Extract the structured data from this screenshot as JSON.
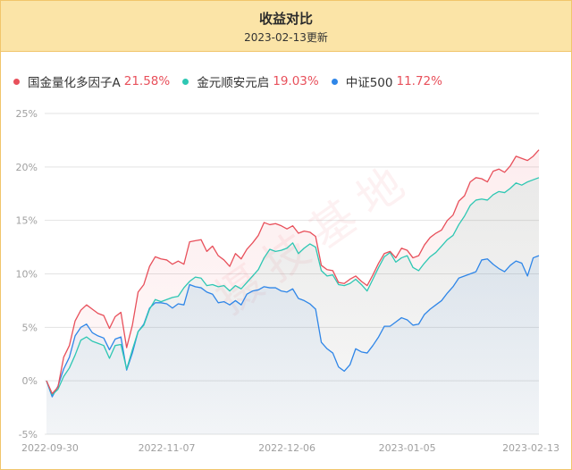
{
  "header": {
    "title": "收益对比",
    "subtitle": "2023-02-13更新"
  },
  "colors": {
    "header_bg": "#fbe4a7",
    "border": "#f1c56b",
    "return_value": "#e8505b"
  },
  "chart_data": {
    "type": "line",
    "ylim": [
      -5,
      25
    ],
    "y_ticks": [
      "-5%",
      "0%",
      "5%",
      "10%",
      "15%",
      "20%",
      "25%"
    ],
    "y_tick_values": [
      -5,
      0,
      5,
      10,
      15,
      20,
      25
    ],
    "x_tick_labels": [
      "2022-09-30",
      "2022-11-07",
      "2022-12-06",
      "2023-01-05",
      "2023-02-13"
    ],
    "x_tick_positions": [
      0,
      21,
      42,
      63,
      86
    ],
    "grid": true,
    "legend_placement": "top-left",
    "watermark": "摄技基地",
    "series": [
      {
        "name": "国金量化多因子A",
        "value_label": "21.58%",
        "color": "#e8505b",
        "values": [
          0,
          -1.2,
          -0.6,
          2.2,
          3.3,
          5.6,
          6.6,
          7.1,
          6.7,
          6.3,
          6.1,
          4.9,
          6.0,
          6.4,
          3.1,
          5.2,
          8.3,
          9.0,
          10.7,
          11.6,
          11.4,
          11.3,
          10.9,
          11.2,
          10.9,
          13.0,
          13.1,
          13.2,
          12.1,
          12.6,
          11.7,
          11.3,
          10.7,
          11.9,
          11.4,
          12.3,
          12.9,
          13.6,
          14.8,
          14.6,
          14.7,
          14.5,
          14.2,
          14.5,
          13.8,
          14.0,
          13.9,
          13.5,
          10.8,
          10.4,
          10.3,
          9.2,
          9.1,
          9.5,
          9.8,
          9.3,
          8.9,
          9.9,
          11.0,
          11.9,
          12.1,
          11.5,
          12.4,
          12.2,
          11.5,
          11.7,
          12.7,
          13.4,
          13.8,
          14.1,
          15.0,
          15.5,
          16.8,
          17.3,
          18.6,
          19.0,
          18.9,
          18.6,
          19.6,
          19.8,
          19.5,
          20.1,
          21.0,
          20.8,
          20.6,
          21.0,
          21.6
        ]
      },
      {
        "name": "金元顺安元启",
        "value_label": "19.03%",
        "color": "#2ec7b3",
        "values": [
          0,
          -1.3,
          -0.8,
          0.4,
          1.2,
          2.4,
          3.8,
          4.1,
          3.7,
          3.5,
          3.3,
          2.1,
          3.3,
          3.4,
          1.1,
          2.9,
          4.6,
          5.2,
          6.7,
          7.6,
          7.4,
          7.6,
          7.8,
          7.9,
          8.7,
          9.3,
          9.7,
          9.6,
          8.9,
          9.0,
          8.8,
          8.9,
          8.4,
          8.9,
          8.6,
          9.2,
          9.8,
          10.4,
          11.5,
          12.3,
          12.1,
          12.2,
          12.4,
          12.9,
          11.9,
          12.4,
          12.8,
          12.5,
          10.3,
          9.8,
          9.9,
          9.0,
          8.9,
          9.1,
          9.5,
          9.0,
          8.4,
          9.5,
          10.6,
          11.6,
          12.0,
          11.1,
          11.5,
          11.7,
          10.6,
          10.3,
          11.0,
          11.6,
          12.0,
          12.6,
          13.2,
          13.6,
          14.6,
          15.4,
          16.4,
          16.9,
          17.0,
          16.9,
          17.4,
          17.7,
          17.6,
          18.0,
          18.5,
          18.3,
          18.6,
          18.8,
          19.0
        ]
      },
      {
        "name": "中证500",
        "value_label": "11.72%",
        "color": "#2f86e8",
        "values": [
          0,
          -1.5,
          -0.5,
          1.1,
          2.2,
          4.2,
          5.0,
          5.3,
          4.5,
          4.2,
          4.0,
          2.9,
          3.9,
          4.1,
          1.0,
          2.6,
          4.6,
          5.3,
          6.8,
          7.3,
          7.3,
          7.2,
          6.8,
          7.2,
          7.1,
          9.0,
          8.8,
          8.7,
          8.3,
          8.1,
          7.3,
          7.4,
          7.1,
          7.5,
          7.1,
          8.1,
          8.4,
          8.5,
          8.8,
          8.7,
          8.7,
          8.4,
          8.3,
          8.6,
          7.7,
          7.5,
          7.2,
          6.7,
          3.6,
          3.0,
          2.6,
          1.3,
          0.9,
          1.5,
          3.0,
          2.7,
          2.6,
          3.3,
          4.1,
          5.1,
          5.1,
          5.5,
          5.9,
          5.7,
          5.2,
          5.3,
          6.2,
          6.7,
          7.1,
          7.5,
          8.2,
          8.8,
          9.6,
          9.8,
          10.0,
          10.2,
          11.3,
          11.4,
          10.9,
          10.5,
          10.2,
          10.8,
          11.2,
          11.0,
          9.8,
          11.5,
          11.7
        ]
      }
    ]
  }
}
